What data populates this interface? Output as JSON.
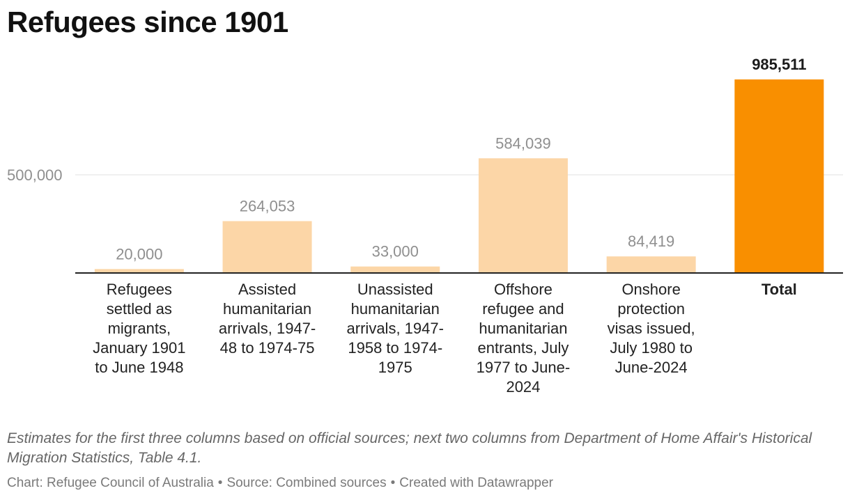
{
  "title": "Refugees since 1901",
  "chart_data": {
    "type": "bar",
    "title": "Refugees since 1901",
    "categories": [
      "Refugees settled as migrants, January 1901 to June 1948",
      "Assisted humanitarian arrivals, 1947-48 to 1974-75",
      "Unassisted humanitarian arrivals, 1947-1958 to 1974-1975",
      "Offshore refugee and humanitarian entrants, July 1977 to June-2024",
      "Onshore protection visas issued, July 1980 to June-2024",
      "Total"
    ],
    "category_lines": [
      [
        "Refugees",
        "settled as",
        "migrants,",
        "January 1901",
        "to June 1948"
      ],
      [
        "Assisted",
        "humanitarian",
        "arrivals, 1947-",
        "48 to 1974-75"
      ],
      [
        "Unassisted",
        "humanitarian",
        "arrivals, 1947-",
        "1958 to 1974-",
        "1975"
      ],
      [
        "Offshore",
        "refugee and",
        "humanitarian",
        "entrants, July",
        "1977 to June-",
        "2024"
      ],
      [
        "Onshore",
        "protection",
        "visas issued,",
        "July 1980 to",
        "June-2024"
      ],
      [
        "Total"
      ]
    ],
    "values": [
      20000,
      264053,
      33000,
      584039,
      84419,
      985511
    ],
    "value_labels": [
      "20,000",
      "264,053",
      "33,000",
      "584,039",
      "84,419",
      "985,511"
    ],
    "highlight_index": 5,
    "ylim": [
      0,
      1000000
    ],
    "yticks": [
      500000
    ],
    "ytick_labels": [
      "500,000"
    ],
    "xlabel": "",
    "ylabel": "",
    "colors": {
      "bar": "#fcd6a7",
      "highlight": "#f98f00",
      "value_label": "#8f8f8f",
      "highlight_label": "#1a1a1a",
      "grid": "#e2e2e2",
      "axis": "#222222"
    }
  },
  "notes": "Estimates for the first three columns based on official sources; next two columns from Department of Home Affair's Historical Migration Statistics, Table 4.1.",
  "byline": {
    "chart": "Chart: Refugee Council of Australia",
    "source": "Source: Combined sources",
    "created": "Created with Datawrapper",
    "separator": "•"
  }
}
